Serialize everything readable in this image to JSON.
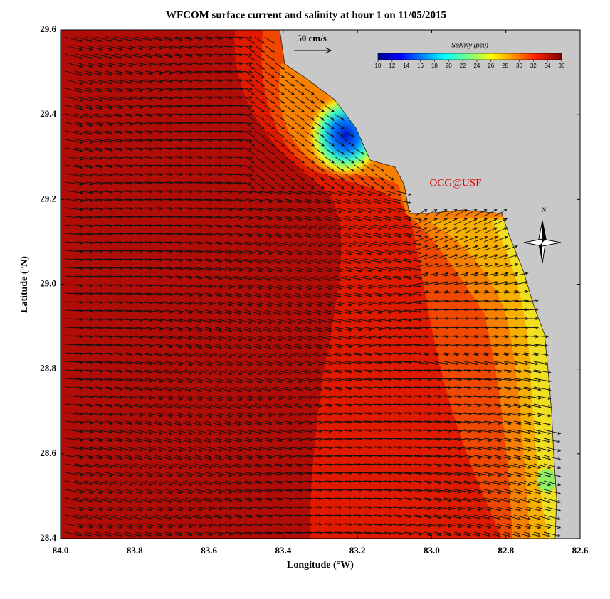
{
  "title": "WFCOM surface current and salinity at hour 1 on 11/05/2015",
  "x_axis": {
    "label": "Longitude (°W)",
    "lim": [
      84,
      82.6
    ],
    "ticks": [
      {
        "value": 84,
        "label": "84.0"
      },
      83.8,
      83.6,
      83.4,
      83.2,
      {
        "value": 83,
        "label": "83.0"
      },
      82.8,
      82.6
    ]
  },
  "y_axis": {
    "label": "Latitude (°N)",
    "lim": [
      28.4,
      29.6
    ],
    "ticks": [
      28.4,
      28.6,
      28.8,
      {
        "value": 29,
        "label": "29.0"
      },
      29.2,
      29.4,
      29.6
    ]
  },
  "colorbar": {
    "title": "Salinity (psu)",
    "lim": [
      10,
      36
    ],
    "ticks": [
      10,
      12,
      14,
      16,
      18,
      20,
      22,
      24,
      26,
      28,
      30,
      32,
      34,
      36
    ]
  },
  "scale_label": "50 cm/s",
  "credit": "OCG@USF",
  "compass": "N"
}
